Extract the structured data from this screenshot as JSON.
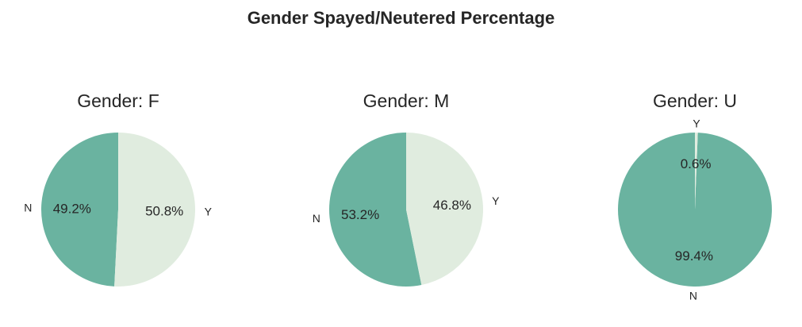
{
  "title": "Gender Spayed/Neutered Percentage",
  "colors": {
    "N": "#6ab3a0",
    "Y": "#e0ecdf"
  },
  "chart_data": [
    {
      "type": "pie",
      "title": "Gender: F",
      "slices": [
        {
          "label": "N",
          "percent": 49.2,
          "display": "49.2%"
        },
        {
          "label": "Y",
          "percent": 50.8,
          "display": "50.8%"
        }
      ]
    },
    {
      "type": "pie",
      "title": "Gender: M",
      "slices": [
        {
          "label": "N",
          "percent": 53.2,
          "display": "53.2%"
        },
        {
          "label": "Y",
          "percent": 46.8,
          "display": "46.8%"
        }
      ]
    },
    {
      "type": "pie",
      "title": "Gender: U",
      "slices": [
        {
          "label": "N",
          "percent": 99.4,
          "display": "99.4%"
        },
        {
          "label": "Y",
          "percent": 0.6,
          "display": "0.6%"
        }
      ]
    }
  ]
}
